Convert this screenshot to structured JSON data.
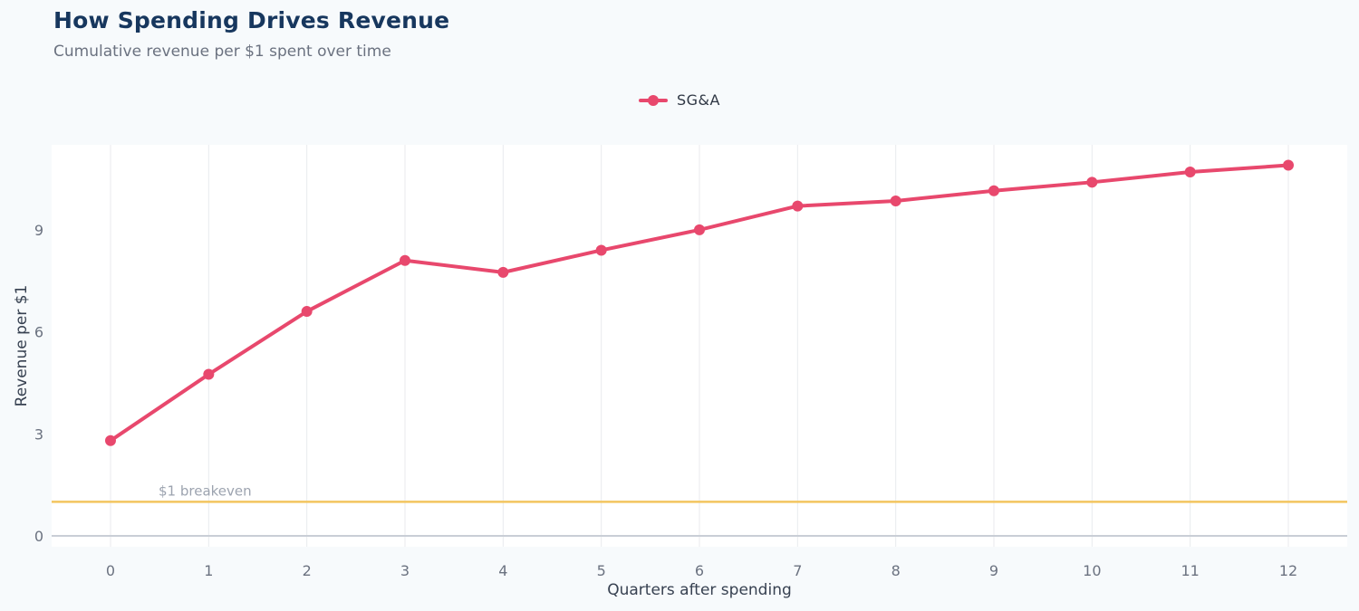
{
  "header": {
    "title": "How Spending Drives Revenue",
    "subtitle": "Cumulative revenue per $1 spent over time"
  },
  "legend": {
    "items": [
      {
        "label": "SG&A",
        "color": "#e8486d"
      }
    ]
  },
  "chart_data": {
    "type": "line",
    "title": "How Spending Drives Revenue",
    "subtitle": "Cumulative revenue per $1 spent over time",
    "xlabel": "Quarters after spending",
    "ylabel": "Revenue per $1",
    "x": [
      0,
      1,
      2,
      3,
      4,
      5,
      6,
      7,
      8,
      9,
      10,
      11,
      12
    ],
    "series": [
      {
        "name": "SG&A",
        "color": "#e8486d",
        "values": [
          2.8,
          4.75,
          6.6,
          8.1,
          7.75,
          8.4,
          9.0,
          9.7,
          9.85,
          10.15,
          10.4,
          10.7,
          10.9
        ]
      }
    ],
    "xticks": [
      0,
      1,
      2,
      3,
      4,
      5,
      6,
      7,
      8,
      9,
      10,
      11,
      12
    ],
    "yticks": [
      0,
      3,
      6,
      9
    ],
    "xlim": [
      -0.6,
      12.6
    ],
    "ylim": [
      -0.32,
      11.5
    ],
    "grid": "vertical-only",
    "legend_position": "top-center",
    "annotations": [
      {
        "type": "hline",
        "y": 1,
        "label": "$1 breakeven",
        "line_color": "#f3c55f",
        "label_color": "#9ca3af"
      }
    ],
    "colors": {
      "background": "#f7fafc",
      "plot_background": "#ffffff",
      "gridline": "#e8eaee",
      "zero_line": "#c9ced6",
      "tick_label": "#6b7280",
      "axis_label": "#374151",
      "title": "#17375e",
      "subtitle": "#6b7280"
    }
  }
}
